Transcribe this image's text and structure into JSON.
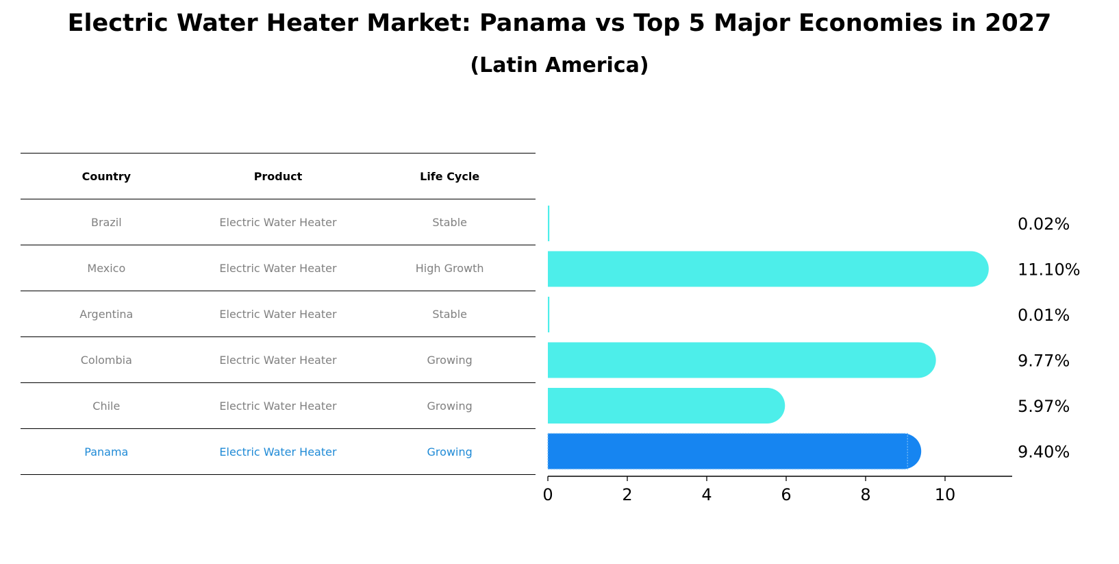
{
  "header": {
    "title": "Electric Water Heater Market: Panama vs Top 5 Major Economies in 2027",
    "subtitle": "(Latin America)"
  },
  "table": {
    "columns": [
      "Country",
      "Product",
      "Life Cycle"
    ],
    "rows": [
      {
        "country": "Brazil",
        "product": "Electric Water Heater",
        "life_cycle": "Stable"
      },
      {
        "country": "Mexico",
        "product": "Electric Water Heater",
        "life_cycle": "High Growth"
      },
      {
        "country": "Argentina",
        "product": "Electric Water Heater",
        "life_cycle": "Stable"
      },
      {
        "country": "Colombia",
        "product": "Electric Water Heater",
        "life_cycle": "Growing"
      },
      {
        "country": "Chile",
        "product": "Electric Water Heater",
        "life_cycle": "Growing"
      },
      {
        "country": "Panama",
        "product": "Electric Water Heater",
        "life_cycle": "Growing"
      }
    ]
  },
  "chart_data": {
    "type": "bar",
    "orientation": "horizontal",
    "title": "Electric Water Heater Market: Panama vs Top 5 Major Economies in 2027",
    "subtitle": "(Latin America)",
    "categories": [
      "Brazil",
      "Mexico",
      "Argentina",
      "Colombia",
      "Chile",
      "Panama"
    ],
    "values": [
      0.02,
      11.1,
      0.01,
      9.77,
      5.97,
      9.4
    ],
    "value_labels": [
      "0.02%",
      "11.10%",
      "0.01%",
      "9.77%",
      "5.97%",
      "9.40%"
    ],
    "highlight": "Panama",
    "xlim": [
      0,
      11.6
    ],
    "xticks": [
      0,
      2,
      4,
      6,
      8,
      10
    ],
    "xlabel": "",
    "ylabel": "",
    "colors": {
      "default": "#4deeea",
      "highlight": "#1685f1"
    }
  }
}
